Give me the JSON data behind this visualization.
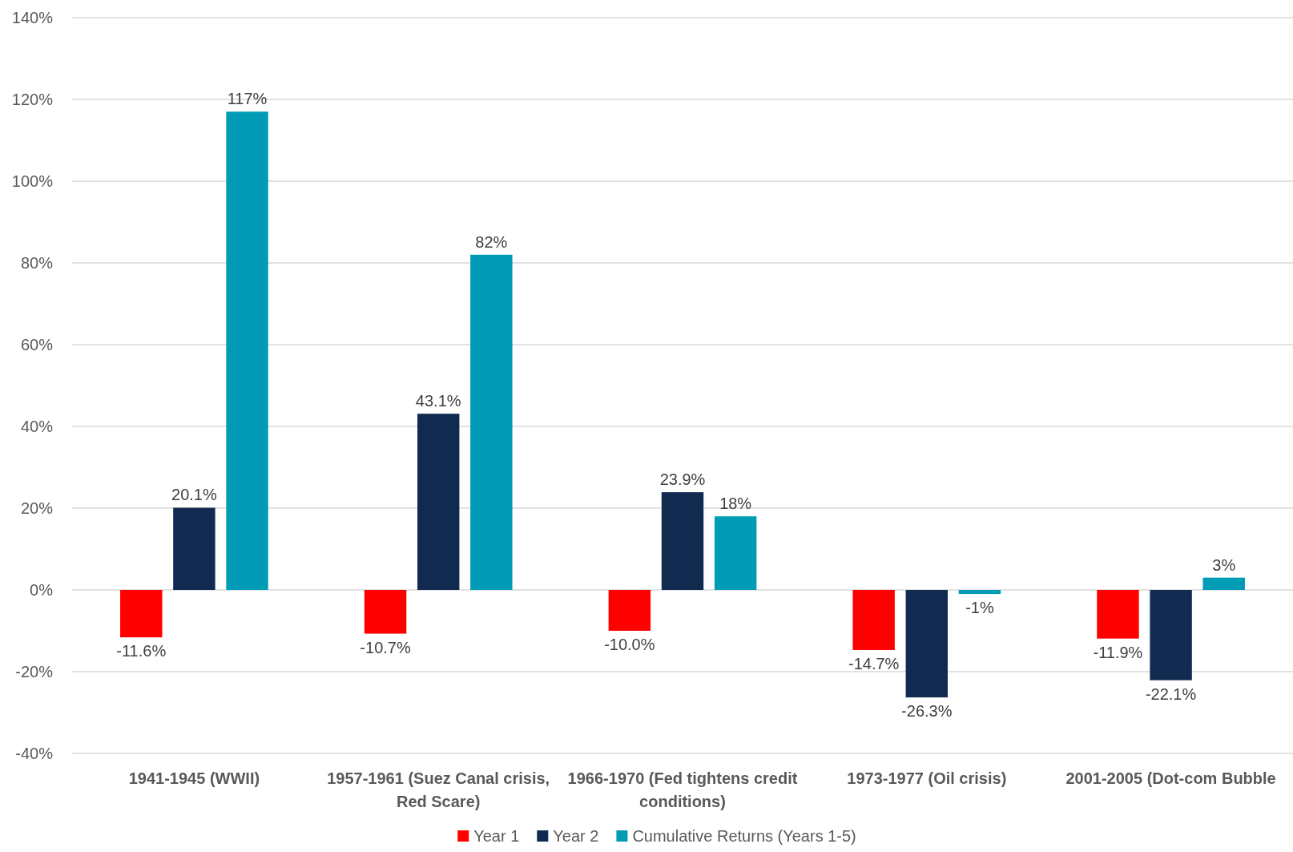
{
  "chart_data": {
    "type": "bar",
    "categories": [
      "1941-1945 (WWII)",
      "1957-1961 (Suez Canal crisis, Red Scare)",
      "1966-1970 (Fed tightens credit conditions)",
      "1973-1977 (Oil crisis)",
      "2001-2005 (Dot-com Bubble"
    ],
    "series": [
      {
        "name": "Year 1",
        "color": "#ff0000",
        "values": [
          -11.6,
          -10.7,
          -10.0,
          -14.7,
          -11.9
        ],
        "value_labels": [
          "-11.6%",
          "-10.7%",
          "-10.0%",
          "-14.7%",
          "-11.9%"
        ]
      },
      {
        "name": "Year 2",
        "color": "#112b50",
        "values": [
          20.1,
          43.1,
          23.9,
          -26.3,
          -22.1
        ],
        "value_labels": [
          "20.1%",
          "43.1%",
          "23.9%",
          "-26.3%",
          "-22.1%"
        ]
      },
      {
        "name": "Cumulative Returns (Years 1-5)",
        "color": "#009bb5",
        "values": [
          117,
          82,
          18,
          -1,
          3
        ],
        "value_labels": [
          "117%",
          "82%",
          "18%",
          "-1%",
          "3%"
        ]
      }
    ],
    "ylim": [
      -40,
      140
    ],
    "yticks": [
      {
        "value": -40,
        "label": "-40%"
      },
      {
        "value": -20,
        "label": "-20%"
      },
      {
        "value": 0,
        "label": "0%"
      },
      {
        "value": 20,
        "label": "20%"
      },
      {
        "value": 40,
        "label": "40%"
      },
      {
        "value": 60,
        "label": "60%"
      },
      {
        "value": 80,
        "label": "80%"
      },
      {
        "value": 100,
        "label": "100%"
      },
      {
        "value": 120,
        "label": "120%"
      },
      {
        "value": 140,
        "label": "140%"
      }
    ],
    "grid": "y",
    "legend": "bottom"
  }
}
